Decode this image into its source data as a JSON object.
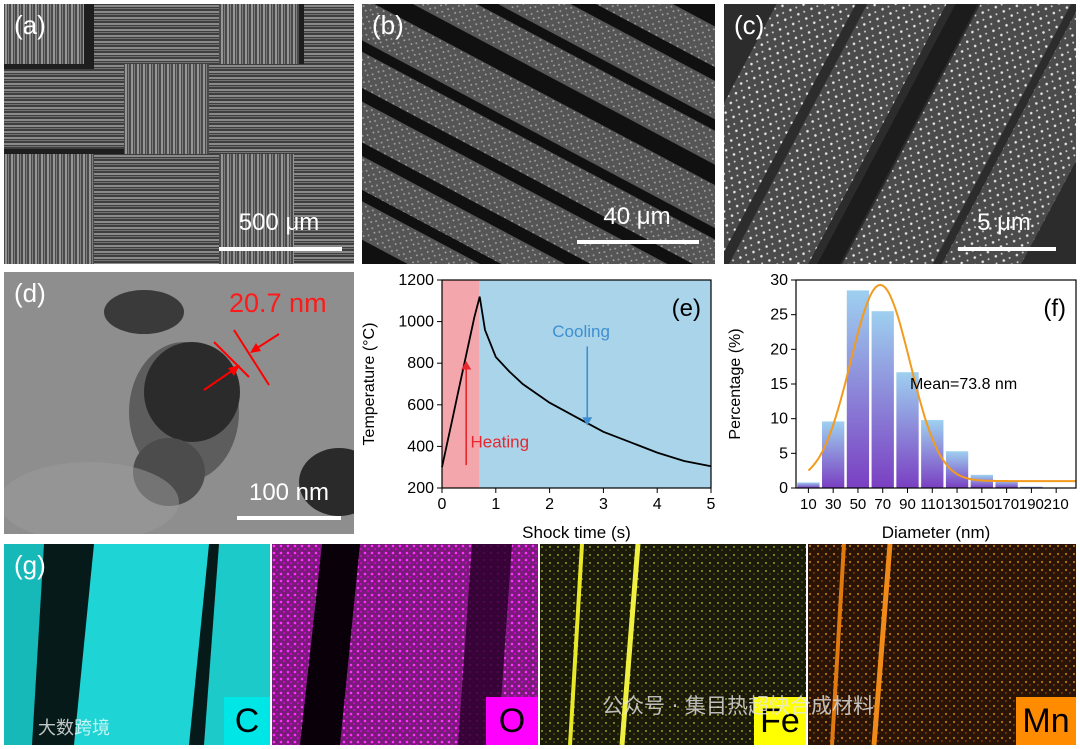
{
  "panels": {
    "a": {
      "label": "(a)",
      "scale": "500 μm"
    },
    "b": {
      "label": "(b)",
      "scale": "40 μm"
    },
    "c": {
      "label": "(c)",
      "scale": "5 μm"
    },
    "d": {
      "label": "(d)",
      "scale": "100 nm",
      "annotation": "20.7 nm"
    },
    "e": {
      "label": "(e)"
    },
    "f": {
      "label": "(f)",
      "mean_text": "Mean=73.8 nm"
    },
    "g": {
      "label": "(g)",
      "elements": [
        "C",
        "O",
        "Fe",
        "Mn"
      ]
    }
  },
  "colors": {
    "C": "#00e5e5",
    "O": "#ff00ff",
    "Fe": "#ffff00",
    "Mn": "#ff8c00",
    "heating": "#f4a6ad",
    "cooling": "#a9d4ea"
  },
  "chart_data": [
    {
      "type": "line",
      "xlabel": "Shock time (s)",
      "ylabel": "Temperature (°C)",
      "xlim": [
        0,
        5
      ],
      "ylim": [
        200,
        1200
      ],
      "xticks": [
        "0",
        "1",
        "2",
        "3",
        "4",
        "5"
      ],
      "yticks": [
        "200",
        "400",
        "600",
        "800",
        "1000",
        "1200"
      ],
      "annotations": [
        "Heating",
        "Cooling"
      ],
      "regions": [
        {
          "name": "Heating",
          "x": [
            0,
            0.7
          ]
        },
        {
          "name": "Cooling",
          "x": [
            0.7,
            5
          ]
        }
      ],
      "series": [
        {
          "x": [
            0,
            0.1,
            0.2,
            0.3,
            0.4,
            0.5,
            0.6,
            0.7,
            0.8,
            1.0,
            1.25,
            1.5,
            2.0,
            2.5,
            3.0,
            3.5,
            4.0,
            4.5,
            5.0
          ],
          "values": [
            300,
            420,
            540,
            660,
            780,
            900,
            1020,
            1120,
            960,
            830,
            760,
            700,
            610,
            540,
            470,
            420,
            370,
            330,
            305
          ]
        }
      ]
    },
    {
      "type": "bar",
      "xlabel": "Diameter (nm)",
      "ylabel": "Percentage (%)",
      "ylim": [
        0,
        30
      ],
      "xticks": [
        "10",
        "30",
        "50",
        "70",
        "90",
        "110",
        "130",
        "150",
        "170",
        "190",
        "210"
      ],
      "yticks": [
        "0",
        "5",
        "10",
        "15",
        "20",
        "25",
        "30"
      ],
      "categories": [
        10,
        30,
        50,
        70,
        90,
        110,
        130,
        150,
        170,
        190
      ],
      "values": [
        0.8,
        9.6,
        28.5,
        25.5,
        16.7,
        9.8,
        5.3,
        1.9,
        1.1,
        0.2
      ],
      "fit": {
        "type": "gaussian",
        "mean": 68,
        "peak": 28.3
      }
    }
  ],
  "watermark": {
    "left": "大数跨境",
    "right": "公众号 · 集目热超快合成材料"
  }
}
